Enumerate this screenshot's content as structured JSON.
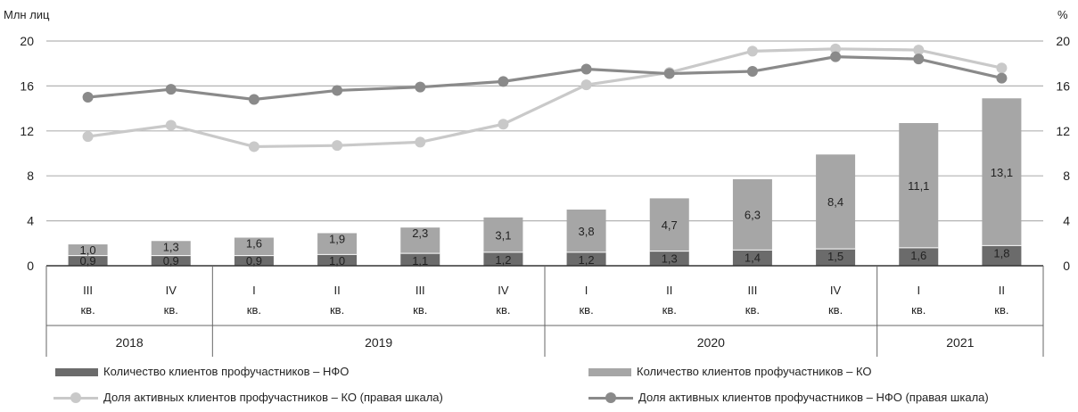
{
  "chart_data": {
    "type": "bar",
    "left_axis_unit": "Млн лиц",
    "right_axis_unit": "%",
    "y_ticks": [
      "0",
      "4",
      "8",
      "12",
      "16",
      "20"
    ],
    "ylim": [
      0,
      20
    ],
    "y2lim": [
      0,
      20
    ],
    "grid": true,
    "categories": [
      {
        "quarter": "III",
        "suffix": "кв.",
        "year": "2018"
      },
      {
        "quarter": "IV",
        "suffix": "кв.",
        "year": "2018"
      },
      {
        "quarter": "I",
        "suffix": "кв.",
        "year": "2019"
      },
      {
        "quarter": "II",
        "suffix": "кв.",
        "year": "2019"
      },
      {
        "quarter": "III",
        "suffix": "кв.",
        "year": "2019"
      },
      {
        "quarter": "IV",
        "suffix": "кв.",
        "year": "2019"
      },
      {
        "quarter": "I",
        "suffix": "кв.",
        "year": "2020"
      },
      {
        "quarter": "II",
        "suffix": "кв.",
        "year": "2020"
      },
      {
        "quarter": "III",
        "suffix": "кв.",
        "year": "2020"
      },
      {
        "quarter": "IV",
        "suffix": "кв.",
        "year": "2020"
      },
      {
        "quarter": "I",
        "suffix": "кв.",
        "year": "2021"
      },
      {
        "quarter": "II",
        "suffix": "кв.",
        "year": "2021"
      }
    ],
    "years": [
      {
        "label": "2018",
        "span": 2
      },
      {
        "label": "2019",
        "span": 4
      },
      {
        "label": "2020",
        "span": 4
      },
      {
        "label": "2021",
        "span": 2
      }
    ],
    "series": [
      {
        "name": "Количество клиентов профучастников – НФО",
        "kind": "bar",
        "stack": "clients",
        "axis": "left",
        "color": "#6b6b6b",
        "values": [
          0.9,
          0.9,
          0.9,
          1.0,
          1.1,
          1.2,
          1.2,
          1.3,
          1.4,
          1.5,
          1.6,
          1.8
        ],
        "labels": [
          "0,9",
          "0,9",
          "0,9",
          "1,0",
          "1,1",
          "1,2",
          "1,2",
          "1,3",
          "1,4",
          "1,5",
          "1,6",
          "1,8"
        ]
      },
      {
        "name": "Количество клиентов профучастников – КО",
        "kind": "bar",
        "stack": "clients",
        "axis": "left",
        "color": "#a6a6a6",
        "values": [
          1.0,
          1.3,
          1.6,
          1.9,
          2.3,
          3.1,
          3.8,
          4.7,
          6.3,
          8.4,
          11.1,
          13.1
        ],
        "labels": [
          "1,0",
          "1,3",
          "1,6",
          "1,9",
          "2,3",
          "3,1",
          "3,8",
          "4,7",
          "6,3",
          "8,4",
          "11,1",
          "13,1"
        ]
      },
      {
        "name": "Доля активных клиентов профучастников – КО (правая шкала)",
        "kind": "line",
        "axis": "right",
        "color": "#c9c9c9",
        "values": [
          11.5,
          12.5,
          10.6,
          10.7,
          11.0,
          12.6,
          16.1,
          17.2,
          19.1,
          19.3,
          19.2,
          17.6
        ]
      },
      {
        "name": "Доля активных клиентов профучастников – НФО (правая шкала)",
        "kind": "line",
        "axis": "right",
        "color": "#8a8a8a",
        "values": [
          15.0,
          15.7,
          14.8,
          15.6,
          15.9,
          16.4,
          17.5,
          17.1,
          17.3,
          18.6,
          18.4,
          16.7
        ]
      }
    ]
  }
}
